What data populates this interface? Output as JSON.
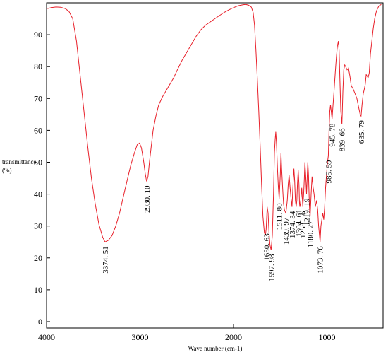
{
  "chart_data": {
    "type": "line",
    "title": "",
    "xlabel": "Wave number  (cm-1)",
    "ylabel": "transmittance (%)",
    "ylabel_lines": [
      "transmittance",
      "(%)"
    ],
    "xlim": [
      4000,
      400
    ],
    "ylim": [
      -2,
      100
    ],
    "x_reversed": true,
    "grid": false,
    "legend": "none",
    "line_color": "#e8202a",
    "xticks": [
      4000,
      3000,
      2000,
      1000
    ],
    "yticks": [
      0,
      10,
      20,
      30,
      40,
      50,
      60,
      70,
      80,
      90
    ],
    "series": [
      {
        "points": [
          [
            3990,
            98.2
          ],
          [
            3950,
            98.5
          ],
          [
            3900,
            98.7
          ],
          [
            3850,
            98.6
          ],
          [
            3800,
            98.2
          ],
          [
            3760,
            97.3
          ],
          [
            3720,
            95.0
          ],
          [
            3680,
            88.0
          ],
          [
            3640,
            77.0
          ],
          [
            3600,
            66.0
          ],
          [
            3560,
            55.0
          ],
          [
            3520,
            45.0
          ],
          [
            3480,
            37.0
          ],
          [
            3440,
            30.5
          ],
          [
            3400,
            26.5
          ],
          [
            3374.51,
            25.0
          ],
          [
            3340,
            25.5
          ],
          [
            3300,
            27.0
          ],
          [
            3260,
            30.0
          ],
          [
            3220,
            34.0
          ],
          [
            3180,
            39.0
          ],
          [
            3140,
            44.0
          ],
          [
            3100,
            49.0
          ],
          [
            3060,
            53.0
          ],
          [
            3030,
            55.5
          ],
          [
            3005,
            56.0
          ],
          [
            2985,
            54.5
          ],
          [
            2960,
            50.0
          ],
          [
            2945,
            46.5
          ],
          [
            2930.1,
            44.0
          ],
          [
            2915,
            45.5
          ],
          [
            2900,
            50.0
          ],
          [
            2880,
            55.0
          ],
          [
            2860,
            60.0
          ],
          [
            2830,
            64.5
          ],
          [
            2800,
            68.0
          ],
          [
            2760,
            70.5
          ],
          [
            2720,
            72.5
          ],
          [
            2680,
            74.5
          ],
          [
            2640,
            76.5
          ],
          [
            2600,
            79.0
          ],
          [
            2550,
            82.0
          ],
          [
            2500,
            84.5
          ],
          [
            2450,
            87.0
          ],
          [
            2400,
            89.5
          ],
          [
            2350,
            91.5
          ],
          [
            2300,
            93.0
          ],
          [
            2250,
            94.0
          ],
          [
            2200,
            95.0
          ],
          [
            2150,
            96.0
          ],
          [
            2100,
            97.0
          ],
          [
            2050,
            97.8
          ],
          [
            2000,
            98.5
          ],
          [
            1950,
            99.1
          ],
          [
            1900,
            99.4
          ],
          [
            1870,
            99.5
          ],
          [
            1840,
            99.3
          ],
          [
            1810,
            98.7
          ],
          [
            1790,
            97.0
          ],
          [
            1775,
            93.0
          ],
          [
            1760,
            85.0
          ],
          [
            1745,
            76.0
          ],
          [
            1730,
            66.0
          ],
          [
            1715,
            55.0
          ],
          [
            1700,
            43.0
          ],
          [
            1685,
            33.0
          ],
          [
            1670,
            28.0
          ],
          [
            1660,
            27.0
          ],
          [
            1650.63,
            29.0
          ],
          [
            1640,
            36.0
          ],
          [
            1630,
            34.0
          ],
          [
            1620,
            28.0
          ],
          [
            1610,
            24.0
          ],
          [
            1597.98,
            22.5
          ],
          [
            1585,
            27.0
          ],
          [
            1572,
            40.0
          ],
          [
            1562,
            53.0
          ],
          [
            1555,
            57.0
          ],
          [
            1548,
            59.5
          ],
          [
            1540,
            56.0
          ],
          [
            1530,
            48.0
          ],
          [
            1520,
            42.0
          ],
          [
            1511.8,
            38.5
          ],
          [
            1500,
            46.0
          ],
          [
            1492,
            53.0
          ],
          [
            1485,
            48.0
          ],
          [
            1475,
            42.0
          ],
          [
            1465,
            37.0
          ],
          [
            1455,
            35.0
          ],
          [
            1439.97,
            34.0
          ],
          [
            1425,
            38.0
          ],
          [
            1415,
            43.0
          ],
          [
            1405,
            46.0
          ],
          [
            1395,
            42.0
          ],
          [
            1384,
            38.5
          ],
          [
            1374.34,
            36.0
          ],
          [
            1368,
            40.0
          ],
          [
            1360,
            45.0
          ],
          [
            1354,
            48.0
          ],
          [
            1346,
            44.0
          ],
          [
            1338,
            38.0
          ],
          [
            1330,
            36.0
          ],
          [
            1322,
            38.0
          ],
          [
            1316,
            43.0
          ],
          [
            1308,
            47.5
          ],
          [
            1300,
            43.0
          ],
          [
            1294,
            37.0
          ],
          [
            1290,
            36.0
          ],
          [
            1280,
            38.0
          ],
          [
            1270,
            42.0
          ],
          [
            1258.56,
            36.0
          ],
          [
            1250,
            40.0
          ],
          [
            1242,
            45.0
          ],
          [
            1236,
            50.0
          ],
          [
            1228,
            46.0
          ],
          [
            1219.19,
            40.0
          ],
          [
            1212,
            45.0
          ],
          [
            1205,
            50.0
          ],
          [
            1198,
            46.0
          ],
          [
            1188,
            36.0
          ],
          [
            1180.27,
            33.0
          ],
          [
            1170,
            40.0
          ],
          [
            1160,
            45.5
          ],
          [
            1148,
            42.0
          ],
          [
            1138,
            40.0
          ],
          [
            1125,
            36.0
          ],
          [
            1112,
            38.0
          ],
          [
            1100,
            35.0
          ],
          [
            1090,
            30.0
          ],
          [
            1080,
            27.0
          ],
          [
            1073.76,
            25.0
          ],
          [
            1065,
            30.0
          ],
          [
            1055,
            32.0
          ],
          [
            1045,
            34.0
          ],
          [
            1035,
            32.0
          ],
          [
            1025,
            36.0
          ],
          [
            1015,
            42.0
          ],
          [
            1005,
            46.0
          ],
          [
            995,
            50.0
          ],
          [
            985.59,
            52.0
          ],
          [
            978,
            60.0
          ],
          [
            970,
            66.0
          ],
          [
            962,
            68.0
          ],
          [
            955,
            66.0
          ],
          [
            945.78,
            63.5
          ],
          [
            935,
            68.0
          ],
          [
            925,
            72.0
          ],
          [
            912,
            78.0
          ],
          [
            900,
            83.0
          ],
          [
            888,
            86.5
          ],
          [
            878,
            88.0
          ],
          [
            870,
            85.0
          ],
          [
            862,
            76.0
          ],
          [
            852,
            66.0
          ],
          [
            839.66,
            62.0
          ],
          [
            830,
            72.0
          ],
          [
            820,
            79.0
          ],
          [
            810,
            80.5
          ],
          [
            800,
            80.0
          ],
          [
            785,
            79.0
          ],
          [
            770,
            79.5
          ],
          [
            755,
            77.0
          ],
          [
            740,
            74.0
          ],
          [
            720,
            73.0
          ],
          [
            700,
            71.5
          ],
          [
            680,
            70.0
          ],
          [
            660,
            67.0
          ],
          [
            645,
            65.0
          ],
          [
            635.79,
            64.5
          ],
          [
            625,
            68.0
          ],
          [
            612,
            71.5
          ],
          [
            600,
            73.0
          ],
          [
            590,
            74.5
          ],
          [
            580,
            77.5
          ],
          [
            570,
            77.0
          ],
          [
            560,
            76.5
          ],
          [
            548,
            78.0
          ],
          [
            535,
            84.0
          ],
          [
            520,
            88.0
          ],
          [
            505,
            92.0
          ],
          [
            490,
            95.0
          ],
          [
            470,
            97.5
          ],
          [
            445,
            99.0
          ],
          [
            420,
            99.5
          ]
        ]
      }
    ],
    "annotations": [
      {
        "text": "3374. 51",
        "x": 3374.51,
        "y": 25.0
      },
      {
        "text": "2930. 10",
        "x": 2930.1,
        "y": 44.0
      },
      {
        "text": "1650. 63",
        "x": 1650.63,
        "y": 29.0
      },
      {
        "text": "1597. 98",
        "x": 1597.98,
        "y": 22.5
      },
      {
        "text": "1511. 80",
        "x": 1511.8,
        "y": 38.5
      },
      {
        "text": "1439. 97",
        "x": 1439.97,
        "y": 34.0
      },
      {
        "text": "1374. 34",
        "x": 1374.34,
        "y": 36.0
      },
      {
        "text": "1304. 61",
        "x": 1304.61,
        "y": 36.5
      },
      {
        "text": "1258. 56",
        "x": 1258.56,
        "y": 36.0
      },
      {
        "text": "1219. 19",
        "x": 1219.19,
        "y": 40.0
      },
      {
        "text": "1180. 27",
        "x": 1180.27,
        "y": 33.0
      },
      {
        "text": "1073. 76",
        "x": 1073.76,
        "y": 25.0
      },
      {
        "text": "985. 59",
        "x": 985.59,
        "y": 52.0
      },
      {
        "text": "945. 78",
        "x": 945.78,
        "y": 63.5
      },
      {
        "text": "839. 66",
        "x": 839.66,
        "y": 62.0
      },
      {
        "text": "635. 79",
        "x": 635.79,
        "y": 64.5
      }
    ]
  }
}
